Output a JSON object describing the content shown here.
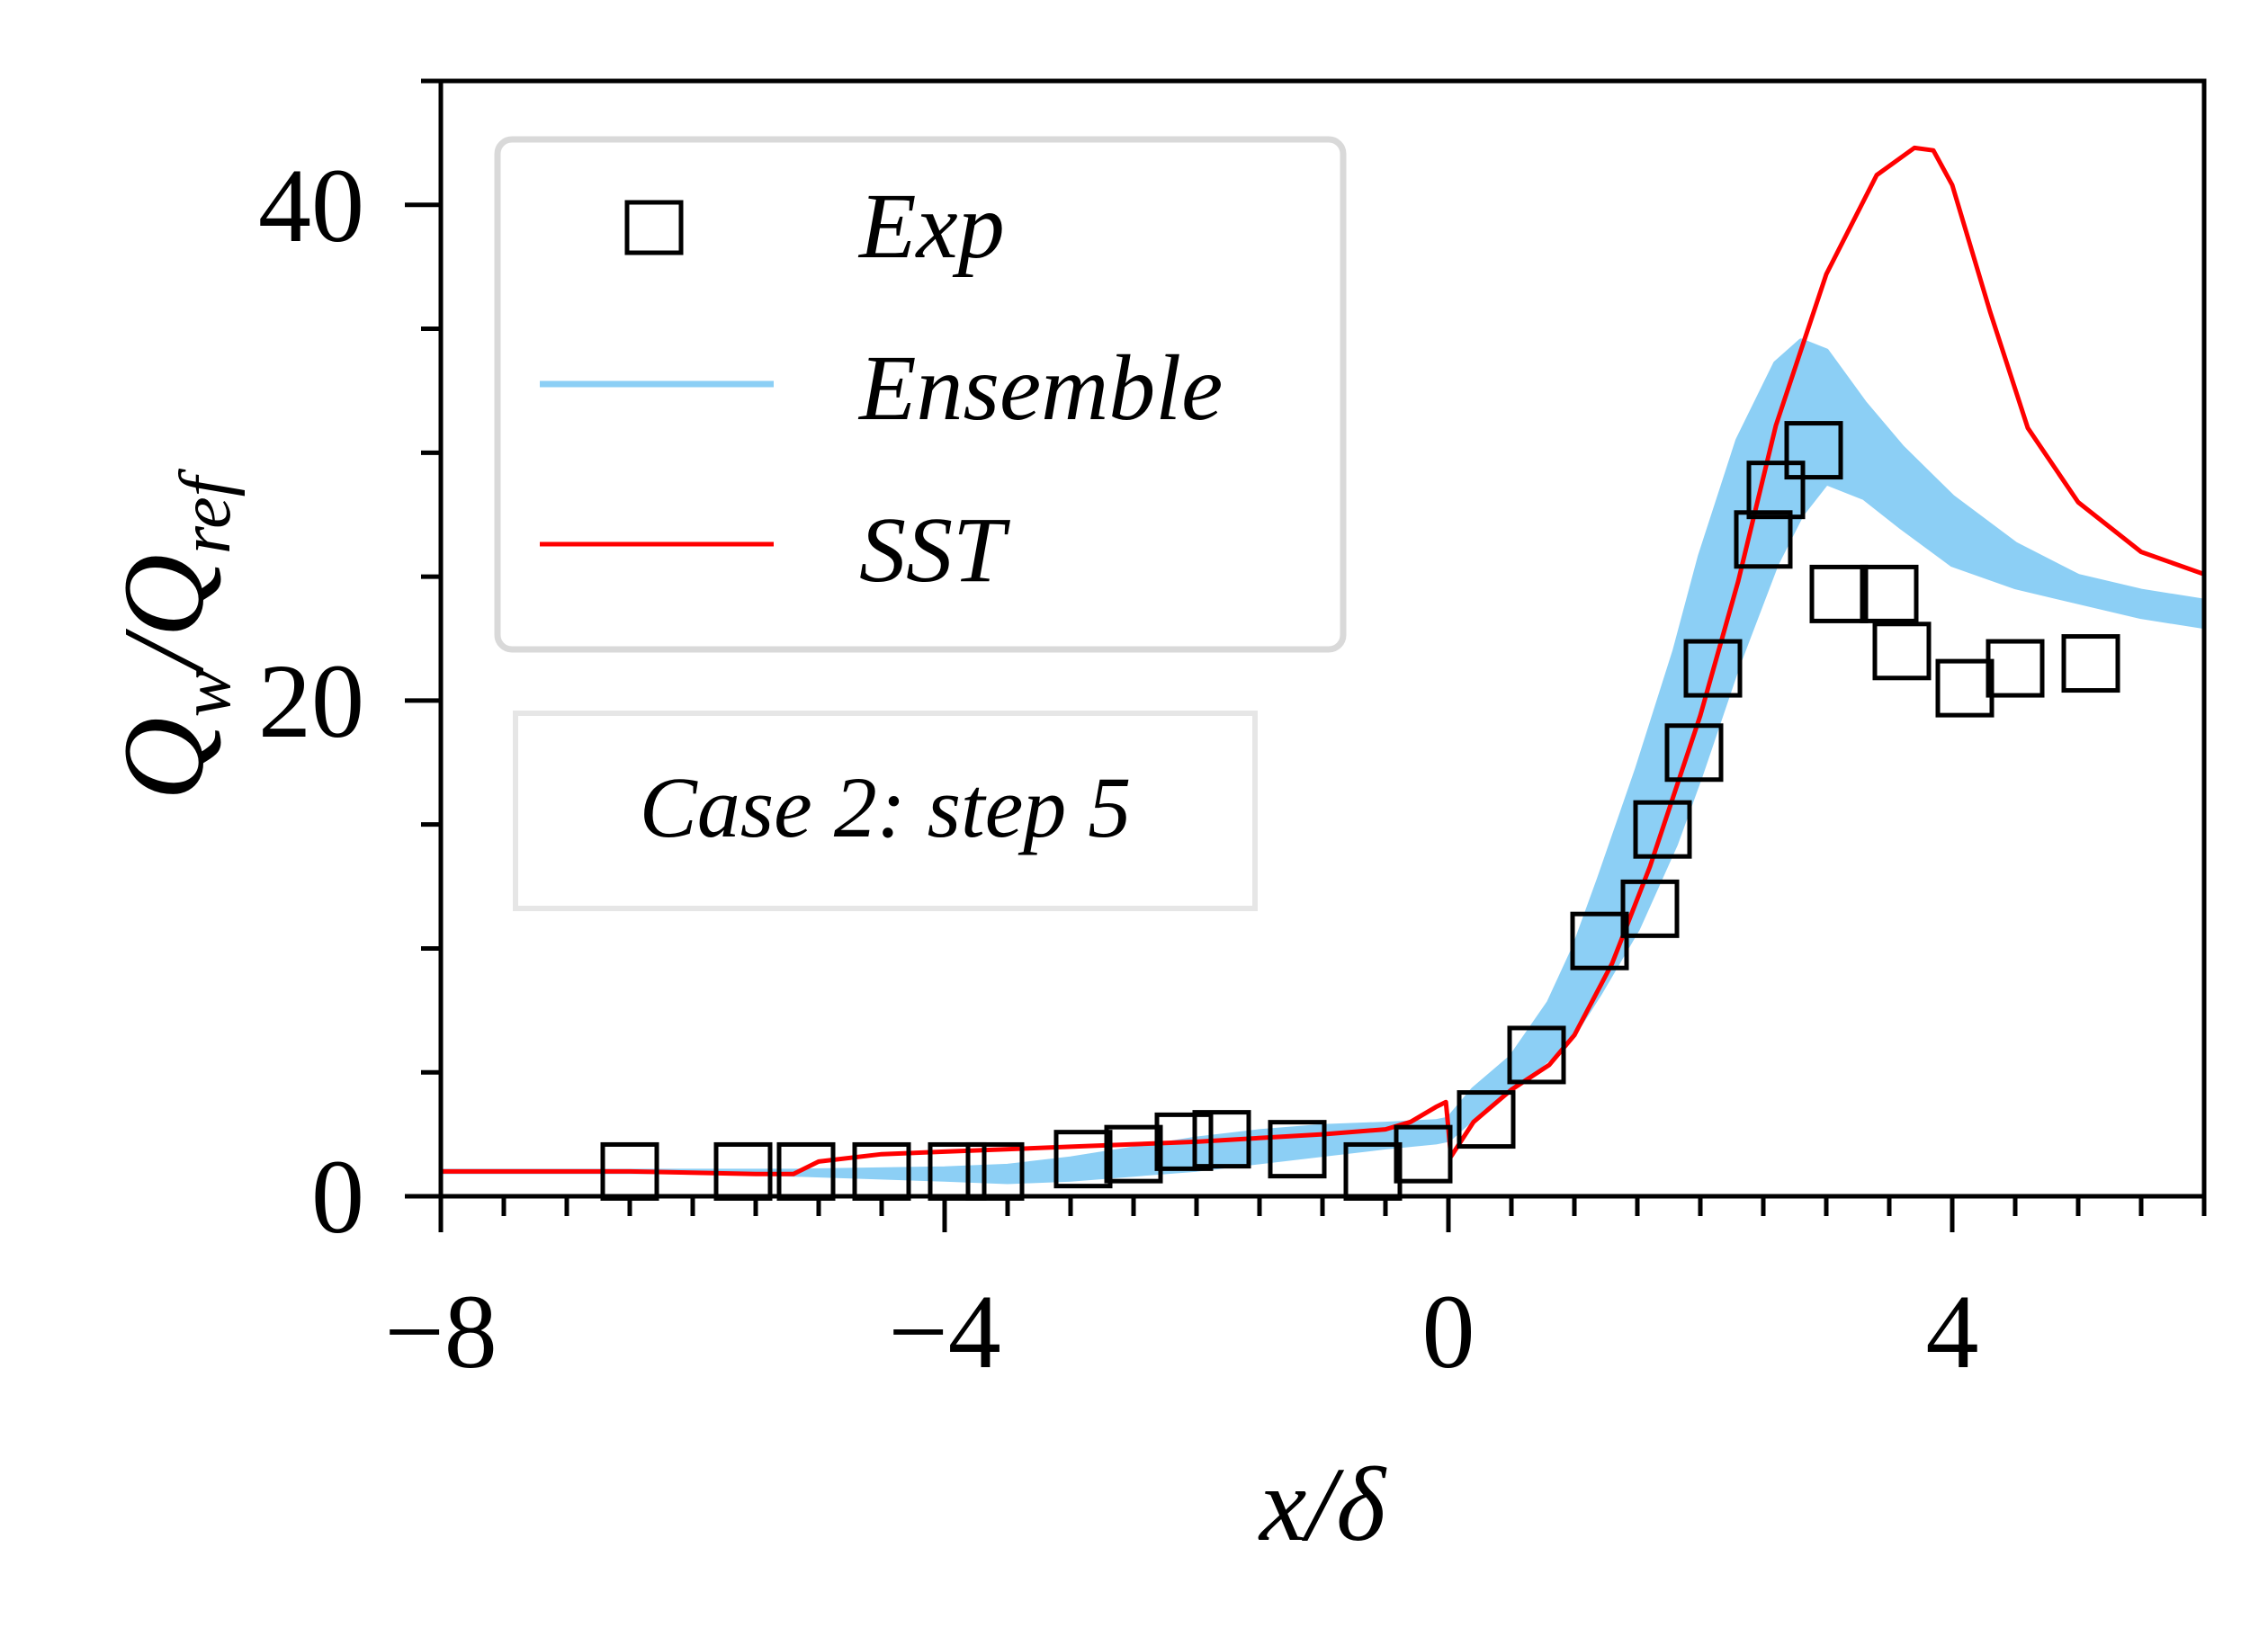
{
  "chart_data": {
    "type": "line",
    "xlabel": "x/δ",
    "ylabel": "Q_w/Q_ref",
    "xlim": [
      -8,
      6
    ],
    "ylim": [
      0,
      45
    ],
    "xticks": [
      -8,
      -4,
      0,
      4
    ],
    "xtick_labels": [
      "−8",
      "−4",
      "0",
      "4"
    ],
    "yticks": [
      0,
      20,
      40
    ],
    "ytick_labels": [
      "0",
      "20",
      "40"
    ],
    "legend_position": "upper-left",
    "annotation": "Case 2: step 5",
    "colors": {
      "exp": "#000000",
      "ensemble": "#8ccff5",
      "sst": "#ff0000"
    },
    "series": [
      {
        "name": "Exp",
        "kind": "markers",
        "marker": "square-open",
        "x": [
          -6.5,
          -5.6,
          -5.1,
          -4.5,
          -3.9,
          -3.6,
          -2.9,
          -2.5,
          -2.1,
          -1.8,
          -1.2,
          -0.6,
          -0.2,
          0.3,
          0.7,
          1.2,
          1.6,
          1.7,
          1.95,
          2.1,
          2.5,
          2.6,
          2.9,
          3.1,
          3.5,
          3.6,
          4.1,
          4.5,
          5.1
        ],
        "y": [
          1.0,
          1.0,
          1.0,
          1.0,
          1.0,
          1.0,
          1.5,
          1.7,
          2.2,
          2.3,
          1.9,
          1.0,
          1.7,
          3.1,
          5.7,
          10.3,
          11.6,
          14.8,
          17.9,
          21.3,
          26.5,
          28.5,
          30.1,
          24.3,
          24.3,
          22.0,
          20.5,
          21.3,
          21.5
        ]
      },
      {
        "name": "Ensemble",
        "kind": "band",
        "x": [
          -8.0,
          -6.0,
          -5.2,
          -4.0,
          -3.5,
          -3.0,
          -2.5,
          -2.0,
          -1.5,
          -1.0,
          -0.5,
          -0.1,
          0.0,
          0.2,
          0.5,
          0.8,
          1.0,
          1.2,
          1.5,
          1.8,
          2.0,
          2.3,
          2.6,
          2.8,
          3.0,
          3.3,
          3.6,
          4.0,
          4.5,
          5.0,
          5.5,
          6.0
        ],
        "upper": [
          1.0,
          1.0,
          1.0,
          1.1,
          1.2,
          1.5,
          1.9,
          2.3,
          2.6,
          2.8,
          2.9,
          3.0,
          3.1,
          4.3,
          5.6,
          7.8,
          10.0,
          12.8,
          17.2,
          22.0,
          25.8,
          30.5,
          33.6,
          34.5,
          34.1,
          32.0,
          30.2,
          28.2,
          26.3,
          25.0,
          24.4,
          24.0
        ],
        "lower": [
          1.0,
          1.0,
          0.9,
          0.7,
          0.6,
          0.7,
          0.9,
          1.1,
          1.4,
          1.7,
          2.0,
          2.2,
          2.3,
          3.2,
          4.3,
          5.6,
          6.6,
          8.2,
          10.8,
          14.2,
          17.0,
          21.5,
          25.5,
          27.5,
          28.8,
          28.2,
          27.0,
          25.5,
          24.6,
          24.0,
          23.4,
          23.0
        ]
      },
      {
        "name": "SST",
        "kind": "line",
        "x": [
          -8.0,
          -6.5,
          -5.5,
          -5.2,
          -5.0,
          -4.5,
          -4.0,
          -3.0,
          -2.0,
          -1.0,
          -0.5,
          -0.3,
          -0.1,
          -0.02,
          0.02,
          0.2,
          0.5,
          0.8,
          1.0,
          1.3,
          1.6,
          2.0,
          2.3,
          2.6,
          3.0,
          3.4,
          3.7,
          3.85,
          4.0,
          4.3,
          4.6,
          5.0,
          5.5,
          6.0
        ],
        "y": [
          1.0,
          1.0,
          0.9,
          0.9,
          1.4,
          1.7,
          1.8,
          2.0,
          2.2,
          2.5,
          2.7,
          3.0,
          3.6,
          3.8,
          1.6,
          3.0,
          4.3,
          5.3,
          6.5,
          9.4,
          13.3,
          19.4,
          24.8,
          31.1,
          37.2,
          41.2,
          42.3,
          42.2,
          40.8,
          35.7,
          31.0,
          28.0,
          26.0,
          25.1
        ]
      }
    ]
  }
}
